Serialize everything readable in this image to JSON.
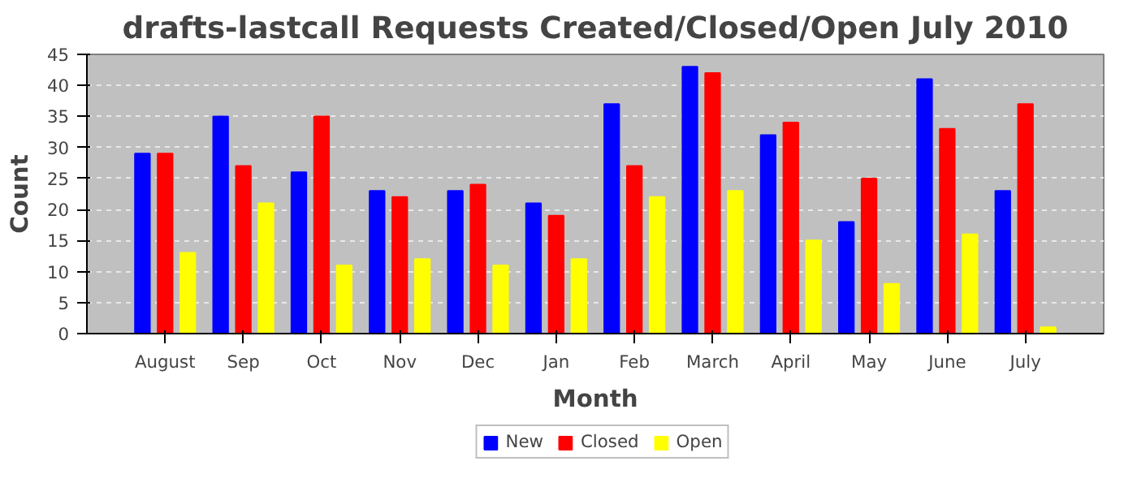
{
  "chart_data": {
    "type": "bar",
    "title": "drafts-lastcall Requests Created/Closed/Open July 2010",
    "xlabel": "Month",
    "ylabel": "Count",
    "categories": [
      "August",
      "Sep",
      "Oct",
      "Nov",
      "Dec",
      "Jan",
      "Feb",
      "March",
      "April",
      "May",
      "June",
      "July"
    ],
    "series": [
      {
        "name": "New",
        "color": "#0000ff",
        "values": [
          29,
          35,
          26,
          23,
          23,
          21,
          37,
          43,
          32,
          18,
          41,
          23
        ]
      },
      {
        "name": "Closed",
        "color": "#ff0000",
        "values": [
          29,
          27,
          35,
          22,
          24,
          19,
          27,
          42,
          34,
          25,
          33,
          37
        ]
      },
      {
        "name": "Open",
        "color": "#ffff00",
        "values": [
          13,
          21,
          11,
          12,
          11,
          12,
          22,
          23,
          15,
          8,
          16,
          1
        ]
      }
    ],
    "ylim": [
      0,
      45
    ],
    "yticks": [
      0,
      5,
      10,
      15,
      20,
      25,
      30,
      35,
      40,
      45
    ],
    "grid": "y",
    "legend": "bottom"
  }
}
